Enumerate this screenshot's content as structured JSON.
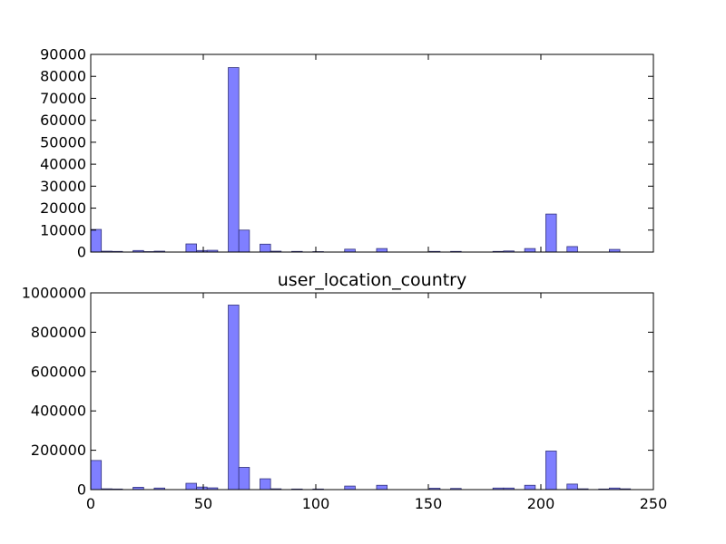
{
  "colors": {
    "bar_fill": "#7f7fff",
    "bar_edge": "#33337a",
    "axes": "#000000",
    "background": "#ffffff"
  },
  "chart_data": [
    {
      "type": "bar",
      "title": "",
      "xlabel": "",
      "ylabel": "",
      "xlim": [
        0,
        250
      ],
      "ylim": [
        0,
        90000
      ],
      "xticks": [
        0,
        50,
        100,
        150,
        200,
        250
      ],
      "xticks_labeled": false,
      "yticks": [
        0,
        10000,
        20000,
        30000,
        40000,
        50000,
        60000,
        70000,
        80000,
        90000
      ],
      "ytick_labels": [
        "0",
        "10000",
        "20000",
        "30000",
        "40000",
        "50000",
        "60000",
        "70000",
        "80000",
        "90000"
      ],
      "bin_width": 4.7,
      "bins": [
        {
          "x": 0,
          "value": 10300
        },
        {
          "x": 4.7,
          "value": 400
        },
        {
          "x": 9.4,
          "value": 300
        },
        {
          "x": 18.8,
          "value": 700
        },
        {
          "x": 23.5,
          "value": 200
        },
        {
          "x": 28.2,
          "value": 400
        },
        {
          "x": 42.3,
          "value": 3700
        },
        {
          "x": 47.0,
          "value": 700
        },
        {
          "x": 51.7,
          "value": 800
        },
        {
          "x": 61.1,
          "value": 84000
        },
        {
          "x": 65.8,
          "value": 10000
        },
        {
          "x": 75.2,
          "value": 3600
        },
        {
          "x": 79.9,
          "value": 400
        },
        {
          "x": 89.3,
          "value": 300
        },
        {
          "x": 98.7,
          "value": 200
        },
        {
          "x": 112.8,
          "value": 1300
        },
        {
          "x": 127.0,
          "value": 1600
        },
        {
          "x": 150.5,
          "value": 300
        },
        {
          "x": 159.9,
          "value": 300
        },
        {
          "x": 178.7,
          "value": 300
        },
        {
          "x": 183.4,
          "value": 500
        },
        {
          "x": 192.8,
          "value": 1600
        },
        {
          "x": 202.2,
          "value": 17300
        },
        {
          "x": 211.6,
          "value": 2500
        },
        {
          "x": 230.4,
          "value": 1200
        }
      ]
    },
    {
      "type": "bar",
      "title": "user_location_country",
      "xlabel": "",
      "ylabel": "",
      "xlim": [
        0,
        250
      ],
      "ylim": [
        0,
        1000000
      ],
      "xticks": [
        0,
        50,
        100,
        150,
        200,
        250
      ],
      "xtick_labels": [
        "0",
        "50",
        "100",
        "150",
        "200",
        "250"
      ],
      "yticks": [
        0,
        200000,
        400000,
        600000,
        800000,
        1000000
      ],
      "ytick_labels": [
        "0",
        "200000",
        "400000",
        "600000",
        "800000",
        "1000000"
      ],
      "bin_width": 4.7,
      "bins": [
        {
          "x": 0,
          "value": 148000
        },
        {
          "x": 4.7,
          "value": 4000
        },
        {
          "x": 9.4,
          "value": 3000
        },
        {
          "x": 18.8,
          "value": 12000
        },
        {
          "x": 28.2,
          "value": 8000
        },
        {
          "x": 42.3,
          "value": 32000
        },
        {
          "x": 47.0,
          "value": 13000
        },
        {
          "x": 51.7,
          "value": 9000
        },
        {
          "x": 61.1,
          "value": 938000
        },
        {
          "x": 65.8,
          "value": 113000
        },
        {
          "x": 75.2,
          "value": 55000
        },
        {
          "x": 79.9,
          "value": 4000
        },
        {
          "x": 89.3,
          "value": 3000
        },
        {
          "x": 98.7,
          "value": 3000
        },
        {
          "x": 112.8,
          "value": 18000
        },
        {
          "x": 127.0,
          "value": 22000
        },
        {
          "x": 150.5,
          "value": 7000
        },
        {
          "x": 159.9,
          "value": 6000
        },
        {
          "x": 178.7,
          "value": 8000
        },
        {
          "x": 183.4,
          "value": 8000
        },
        {
          "x": 192.8,
          "value": 22000
        },
        {
          "x": 202.2,
          "value": 196000
        },
        {
          "x": 211.6,
          "value": 28000
        },
        {
          "x": 216.3,
          "value": 4000
        },
        {
          "x": 225.7,
          "value": 3000
        },
        {
          "x": 230.4,
          "value": 8000
        },
        {
          "x": 235.1,
          "value": 4000
        }
      ]
    }
  ]
}
